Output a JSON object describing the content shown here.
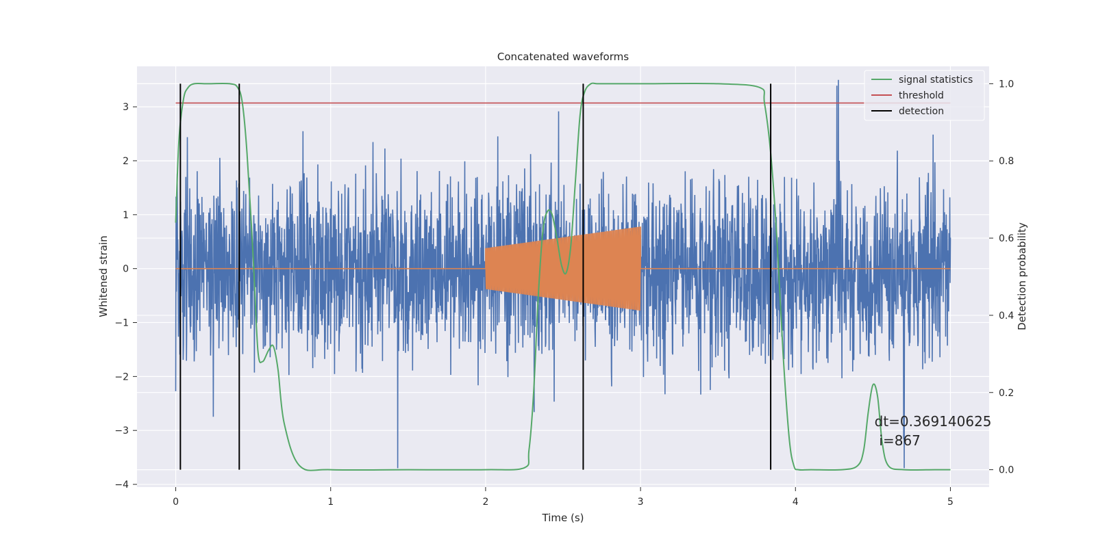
{
  "chart_data": {
    "type": "line",
    "title": "Concatenated waveforms",
    "xlabel": "Time (s)",
    "ylabel_left": "Whitened strain",
    "ylabel_right": "Detection probability",
    "xlim": [
      -0.25,
      5.25
    ],
    "ylim_left": [
      -4.05,
      3.75
    ],
    "ylim_right": [
      -0.045,
      1.045
    ],
    "x_ticks": [
      0,
      1,
      2,
      3,
      4,
      5
    ],
    "y_ticks_left": [
      -4,
      -3,
      -2,
      -1,
      0,
      1,
      2,
      3
    ],
    "y_ticks_right": [
      0.0,
      0.2,
      0.4,
      0.6,
      0.8,
      1.0
    ],
    "grid": true,
    "legend_position": "upper right",
    "colors": {
      "background": "#EAEAF2",
      "noise": "#4C72B0",
      "template": "#DD8452",
      "signal_statistics": "#55A868",
      "threshold": "#C44E52",
      "detection": "#000000"
    },
    "series": [
      {
        "name": "signal statistics",
        "axis": "right",
        "x": [
          0.0,
          0.02,
          0.05,
          0.08,
          0.12,
          0.2,
          0.35,
          0.4,
          0.43,
          0.46,
          0.5,
          0.53,
          0.56,
          0.6,
          0.63,
          0.66,
          0.7,
          0.8,
          1.0,
          1.5,
          2.0,
          2.25,
          2.28,
          2.31,
          2.34,
          2.37,
          2.4,
          2.43,
          2.46,
          2.49,
          2.52,
          2.55,
          2.58,
          2.61,
          2.64,
          2.68,
          2.72,
          2.8,
          3.0,
          3.5,
          3.77,
          3.8,
          3.84,
          3.88,
          3.92,
          3.96,
          3.99,
          4.02,
          4.1,
          4.3,
          4.4,
          4.44,
          4.47,
          4.5,
          4.53,
          4.56,
          4.6,
          4.7,
          4.9,
          5.0
        ],
        "values": [
          0.64,
          0.85,
          0.96,
          0.99,
          1.0,
          1.0,
          1.0,
          0.99,
          0.95,
          0.82,
          0.55,
          0.31,
          0.28,
          0.31,
          0.32,
          0.26,
          0.12,
          0.01,
          0.0,
          0.0,
          0.0,
          0.005,
          0.05,
          0.2,
          0.45,
          0.62,
          0.67,
          0.66,
          0.6,
          0.53,
          0.51,
          0.58,
          0.75,
          0.92,
          0.98,
          1.0,
          1.0,
          1.0,
          1.0,
          1.0,
          0.99,
          0.95,
          0.82,
          0.6,
          0.3,
          0.08,
          0.01,
          0.0,
          0.0,
          0.0,
          0.01,
          0.05,
          0.15,
          0.22,
          0.19,
          0.07,
          0.01,
          0.0,
          0.0,
          0.0
        ]
      },
      {
        "name": "threshold",
        "axis": "right",
        "x": [
          0.0,
          5.0
        ],
        "values": [
          0.95,
          0.95
        ]
      }
    ],
    "detections": [
      0.03,
      0.41,
      2.63,
      3.84
    ],
    "detection_range": [
      0.0,
      1.0
    ],
    "noise_series": {
      "axis": "left",
      "x_range": [
        0.0,
        5.0
      ],
      "amplitude_range": [
        -3.7,
        3.5
      ]
    },
    "template_series": {
      "axis": "left",
      "x_range": [
        2.0,
        3.0
      ],
      "amplitude_start": 0.38,
      "amplitude_end": 0.78,
      "flat_value": 0
    },
    "annotations": [
      {
        "text": "dt=0.369140625",
        "x": 4.51,
        "y": 0.113
      },
      {
        "text": "i=867",
        "x": 4.54,
        "y": 0.063
      }
    ]
  }
}
